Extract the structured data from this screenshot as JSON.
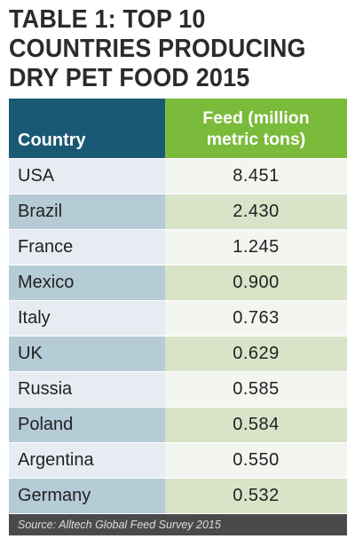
{
  "title_lines": [
    "TABLE 1: TOP 10",
    "COUNTRIES PRODUCING",
    "DRY PET FOOD 2015"
  ],
  "header": {
    "country": "Country",
    "feed_line1": "Feed (million",
    "feed_line2": "metric tons)"
  },
  "chart_data": {
    "type": "table",
    "title": "TABLE 1: TOP 10 COUNTRIES PRODUCING DRY PET FOOD 2015",
    "columns": [
      "Country",
      "Feed (million metric tons)"
    ],
    "rows": [
      [
        "USA",
        "8.451"
      ],
      [
        "Brazil",
        "2.430"
      ],
      [
        "France",
        "1.245"
      ],
      [
        "Mexico",
        "0.900"
      ],
      [
        "Italy",
        "0.763"
      ],
      [
        "UK",
        "0.629"
      ],
      [
        "Russia",
        "0.585"
      ],
      [
        "Poland",
        "0.584"
      ],
      [
        "Argentina",
        "0.550"
      ],
      [
        "Germany",
        "0.532"
      ]
    ]
  },
  "source": "Source: Alltech Global Feed Survey 2015",
  "colors": {
    "header_country_bg": "#1a5973",
    "header_feed_bg": "#7bbb3b",
    "row_light_country": "#e6ecf2",
    "row_dark_country": "#b5cbd6",
    "row_light_value": "#f3f5f1",
    "row_dark_value": "#d9e3c8",
    "source_bg": "#4a4a4a"
  }
}
